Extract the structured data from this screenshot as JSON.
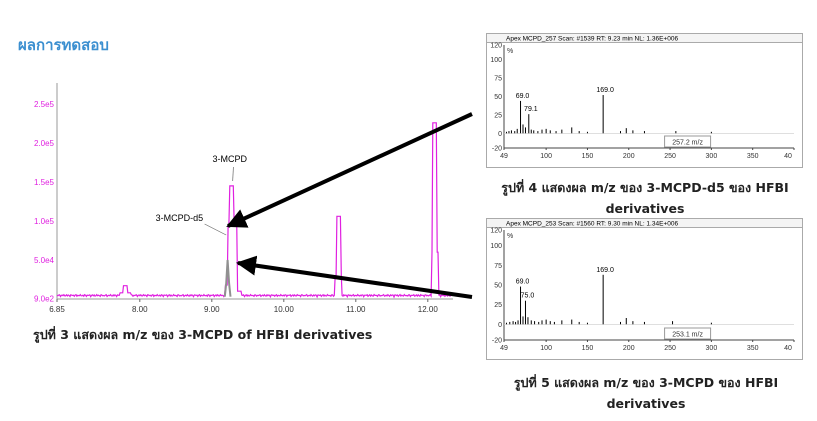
{
  "heading": "ผลการทดสอบ",
  "captions": {
    "fig3": "รูปที่ 3 แสดงผล m/z ของ 3-MCPD of HFBI derivatives",
    "fig4_line1": "รูปที่ 4 แสดงผล m/z ของ 3-MCPD-d5 ของ HFBI",
    "fig4_line2": "derivatives",
    "fig5_line1": "รูปที่ 5 แสดงผล m/z ของ 3-MCPD ของ HFBI",
    "fig5_line2": "derivatives"
  },
  "colors": {
    "heading": "#3b8fd0",
    "chromatogram": "#e020e0",
    "spectrum": "#000000",
    "arrow": "#000000",
    "d5_trace": "#909090"
  },
  "chart_data": [
    {
      "type": "line",
      "title": "",
      "xlabel": "",
      "ylabel": "",
      "x_ticks": [
        "6.85",
        "8.00",
        "9.00",
        "10.00",
        "11.00",
        "12.00"
      ],
      "y_ticks": [
        "9.0e2",
        "5.0e4",
        "1.0e5",
        "1.5e5",
        "2.0e5",
        "2.5e5"
      ],
      "xlim": [
        6.85,
        12.35
      ],
      "ylim": [
        0,
        277000
      ],
      "annotations": [
        "3-MCPD",
        "3-MCPD-d5"
      ],
      "series": [
        {
          "x": [
            6.85,
            7.6,
            7.75,
            7.8,
            7.85,
            8.0,
            9.15,
            9.22,
            9.25,
            9.28,
            9.32,
            9.38,
            9.6,
            10.7,
            10.74,
            10.76,
            10.78,
            10.82,
            12.0,
            12.08,
            12.1,
            12.12,
            12.16,
            12.35
          ],
          "y": [
            3000,
            3000,
            8000,
            17000,
            8000,
            3000,
            3000,
            18000,
            95000,
            145000,
            100000,
            10000,
            3000,
            3000,
            30000,
            106000,
            30000,
            3000,
            3000,
            60000,
            226000,
            60000,
            3000,
            3000
          ]
        },
        {
          "x": [
            9.18,
            9.2,
            9.22,
            9.24,
            9.26
          ],
          "y": [
            3000,
            20000,
            50000,
            20000,
            3000
          ]
        }
      ]
    },
    {
      "type": "bar",
      "title": "Apex MCPD_257 Scan: #1539  RT: 9.23 min  NL: 1.36E+006",
      "xlabel": "",
      "ylabel": "%",
      "x_ticks": [
        "49",
        "100",
        "150",
        "200",
        "250",
        "300",
        "350",
        "40"
      ],
      "y_ticks": [
        "120",
        "100",
        "75",
        "50",
        "25",
        "0",
        "-20"
      ],
      "xlim": [
        49,
        400
      ],
      "ylim": [
        -20,
        120
      ],
      "legend": "257.2 m/z",
      "labels": [
        "69.0",
        "79.1",
        "169.0"
      ],
      "x": [
        52,
        55,
        58,
        62,
        65,
        69,
        72,
        75,
        79,
        82,
        85,
        90,
        95,
        100,
        105,
        112,
        119,
        131,
        140,
        150,
        169,
        190,
        197,
        205,
        219,
        257,
        300
      ],
      "values": [
        2,
        3,
        4,
        3,
        6,
        44,
        12,
        8,
        26,
        5,
        4,
        3,
        5,
        6,
        4,
        3,
        5,
        8,
        3,
        2,
        52,
        3,
        7,
        4,
        3,
        3,
        2
      ]
    },
    {
      "type": "bar",
      "title": "Apex MCPD_253 Scan: #1560  RT: 9.30 min  NL: 1.34E+006",
      "xlabel": "",
      "ylabel": "%",
      "x_ticks": [
        "49",
        "100",
        "150",
        "200",
        "250",
        "300",
        "350",
        "40"
      ],
      "y_ticks": [
        "120",
        "100",
        "75",
        "50",
        "25",
        "0",
        "-20"
      ],
      "xlim": [
        49,
        400
      ],
      "ylim": [
        -20,
        120
      ],
      "legend": "253.1 m/z",
      "labels": [
        "69.0",
        "75.0",
        "169.0"
      ],
      "x": [
        52,
        56,
        60,
        63,
        66,
        69,
        72,
        75,
        78,
        82,
        86,
        91,
        95,
        100,
        105,
        110,
        119,
        131,
        140,
        150,
        169,
        190,
        197,
        205,
        219,
        253,
        300
      ],
      "values": [
        2,
        3,
        4,
        3,
        5,
        48,
        10,
        30,
        9,
        5,
        4,
        3,
        5,
        6,
        4,
        3,
        5,
        6,
        3,
        2,
        63,
        3,
        8,
        4,
        3,
        4,
        2
      ]
    }
  ]
}
